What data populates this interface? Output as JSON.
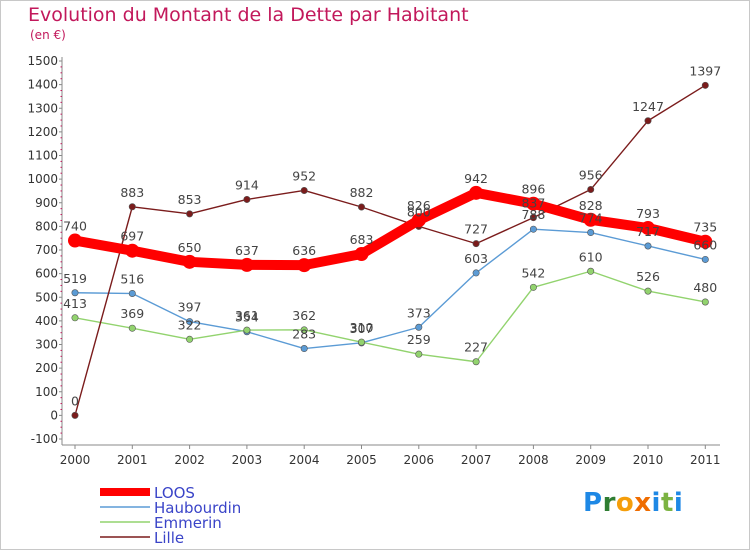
{
  "title": "Evolution du Montant de la Dette par Habitant",
  "subtitle": "(en €)",
  "brand": {
    "text": "Proxiti",
    "letters": [
      {
        "char": "P",
        "color": "#1e88e5"
      },
      {
        "char": "r",
        "color": "#2e7d32"
      },
      {
        "char": "o",
        "color": "#f59e0b"
      },
      {
        "char": "x",
        "color": "#ef6c00"
      },
      {
        "char": "i",
        "color": "#1e88e5"
      },
      {
        "char": "t",
        "color": "#7cb342"
      },
      {
        "char": "i",
        "color": "#1e88e5"
      }
    ]
  },
  "chart_data": {
    "type": "line",
    "title": "Evolution du Montant de la Dette par Habitant",
    "subtitle": "(en €)",
    "x": [
      "2000",
      "2001",
      "2002",
      "2003",
      "2004",
      "2005",
      "2006",
      "2007",
      "2008",
      "2009",
      "2010",
      "2011"
    ],
    "ylim": [
      -100,
      1500
    ],
    "yticks": [
      "-100",
      "0",
      "100",
      "200",
      "300",
      "400",
      "500",
      "600",
      "700",
      "800",
      "900",
      "1000",
      "1100",
      "1200",
      "1300",
      "1400",
      "1500"
    ],
    "legend_position": "bottom-left",
    "grid": false,
    "series": [
      {
        "name": "LOOS",
        "color": "#ff0000",
        "emphasis": true,
        "values": [
          740,
          697,
          650,
          637,
          636,
          683,
          826,
          942,
          896,
          828,
          793,
          735
        ]
      },
      {
        "name": "Haubourdin",
        "color": "#5b9bd5",
        "emphasis": false,
        "values": [
          519,
          516,
          397,
          354,
          283,
          307,
          373,
          603,
          788,
          774,
          717,
          660
        ]
      },
      {
        "name": "Emmerin",
        "color": "#92d36e",
        "emphasis": false,
        "values": [
          413,
          369,
          322,
          361,
          362,
          310,
          259,
          227,
          542,
          610,
          526,
          480
        ]
      },
      {
        "name": "Lille",
        "color": "#7b1c1c",
        "emphasis": false,
        "values": [
          0,
          883,
          853,
          914,
          952,
          882,
          800,
          727,
          837,
          956,
          1247,
          1397
        ]
      }
    ]
  }
}
